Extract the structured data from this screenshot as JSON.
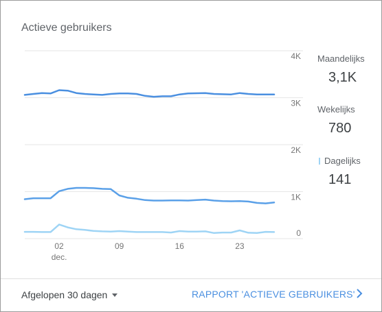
{
  "card": {
    "title": "Actieve gebruikers"
  },
  "legend": [
    {
      "label": "Maandelijks",
      "value": "3,1K",
      "color": "#4a8fe0"
    },
    {
      "label": "Wekelijks",
      "value": "780",
      "color": "#5aa0e8"
    },
    {
      "label": "Dagelijks",
      "value": "141",
      "color": "#9ed4f5"
    }
  ],
  "footer": {
    "range_label": "Afgelopen 30 dagen",
    "report_link": "RAPPORT 'ACTIEVE GEBRUIKERS'"
  },
  "chart_data": {
    "type": "line",
    "ylim": [
      0,
      4000
    ],
    "y_ticks": [
      {
        "value": 0,
        "label": "0"
      },
      {
        "value": 1000,
        "label": "1K"
      },
      {
        "value": 2000,
        "label": "2K"
      },
      {
        "value": 3000,
        "label": "3K"
      },
      {
        "value": 4000,
        "label": "4K"
      }
    ],
    "x": [
      "nov 28",
      "nov 29",
      "nov 30",
      "dec 01",
      "dec 02",
      "dec 03",
      "dec 04",
      "dec 05",
      "dec 06",
      "dec 07",
      "dec 08",
      "dec 09",
      "dec 10",
      "dec 11",
      "dec 12",
      "dec 13",
      "dec 14",
      "dec 15",
      "dec 16",
      "dec 17",
      "dec 18",
      "dec 19",
      "dec 20",
      "dec 21",
      "dec 22",
      "dec 23",
      "dec 24",
      "dec 25",
      "dec 26",
      "dec 27"
    ],
    "x_ticks": [
      {
        "at": "dec 02",
        "label": "02",
        "sublabel": "dec."
      },
      {
        "at": "dec 09",
        "label": "09",
        "sublabel": ""
      },
      {
        "at": "dec 16",
        "label": "16",
        "sublabel": ""
      },
      {
        "at": "dec 23",
        "label": "23",
        "sublabel": ""
      }
    ],
    "series": [
      {
        "name": "Maandelijks",
        "color": "#4a8fe0",
        "values": [
          3060,
          3080,
          3100,
          3090,
          3160,
          3150,
          3100,
          3080,
          3070,
          3060,
          3080,
          3090,
          3090,
          3080,
          3040,
          3020,
          3030,
          3030,
          3070,
          3090,
          3095,
          3100,
          3080,
          3075,
          3070,
          3100,
          3080,
          3070,
          3070,
          3070
        ]
      },
      {
        "name": "Wekelijks",
        "color": "#5aa0e8",
        "values": [
          840,
          860,
          860,
          860,
          1010,
          1060,
          1080,
          1080,
          1075,
          1060,
          1055,
          920,
          870,
          850,
          820,
          810,
          810,
          815,
          815,
          810,
          820,
          830,
          810,
          800,
          795,
          800,
          790,
          760,
          750,
          770
        ]
      },
      {
        "name": "Dagelijks",
        "color": "#9ed4f5",
        "values": [
          145,
          145,
          140,
          140,
          300,
          240,
          200,
          185,
          165,
          155,
          150,
          160,
          150,
          140,
          140,
          140,
          140,
          130,
          160,
          150,
          150,
          155,
          120,
          130,
          130,
          175,
          125,
          120,
          145,
          140
        ]
      }
    ]
  }
}
